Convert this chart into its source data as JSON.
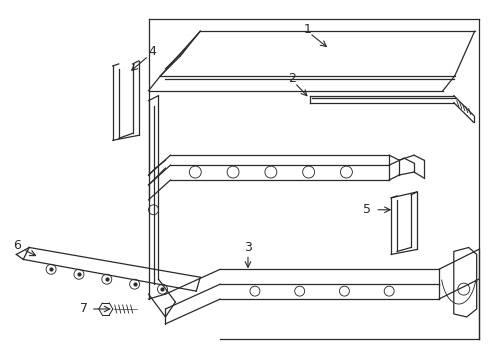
{
  "bg_color": "#ffffff",
  "line_color": "#2a2a2a",
  "fig_width": 4.89,
  "fig_height": 3.6,
  "dpi": 100,
  "lw": 0.9
}
